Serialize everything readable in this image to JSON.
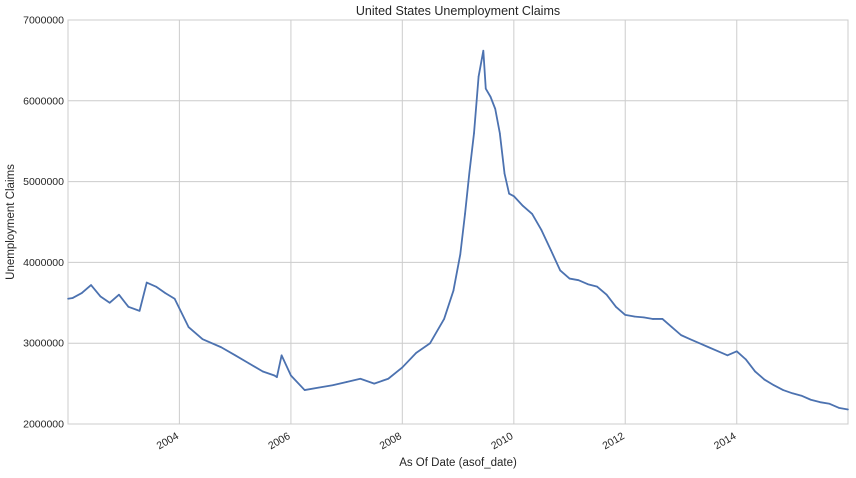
{
  "chart_data": {
    "type": "line",
    "title": "United States Unemployment Claims",
    "xlabel": "As Of Date (asof_date)",
    "ylabel": "Unemployment Claims",
    "xlim": [
      "2002-01-01",
      "2015-12-31"
    ],
    "ylim": [
      2000000,
      7000000
    ],
    "grid": true,
    "legend": "none",
    "line_color": "#4c72b0",
    "grid_color": "#cccccc",
    "x_ticks": [
      {
        "value": "2004-01-01",
        "label": "2004"
      },
      {
        "value": "2006-01-01",
        "label": "2006"
      },
      {
        "value": "2008-01-01",
        "label": "2008"
      },
      {
        "value": "2010-01-01",
        "label": "2010"
      },
      {
        "value": "2012-01-01",
        "label": "2012"
      },
      {
        "value": "2014-01-01",
        "label": "2014"
      }
    ],
    "y_ticks": [
      {
        "value": 2000000,
        "label": "2000000"
      },
      {
        "value": 3000000,
        "label": "3000000"
      },
      {
        "value": 4000000,
        "label": "4000000"
      },
      {
        "value": 5000000,
        "label": "5000000"
      },
      {
        "value": 6000000,
        "label": "6000000"
      },
      {
        "value": 7000000,
        "label": "7000000"
      }
    ],
    "series": [
      {
        "x": [
          "2002-01-01",
          "2002-02-01",
          "2002-04-01",
          "2002-06-01",
          "2002-08-01",
          "2002-10-01",
          "2002-12-01",
          "2003-02-01",
          "2003-04-15",
          "2003-06-01",
          "2003-08-01",
          "2003-10-01",
          "2003-12-01",
          "2004-03-01",
          "2004-06-01",
          "2004-10-01",
          "2005-01-01",
          "2005-04-01",
          "2005-07-01",
          "2005-09-15",
          "2005-10-01",
          "2005-11-01",
          "2006-01-01",
          "2006-04-01",
          "2006-07-01",
          "2006-10-01",
          "2007-01-01",
          "2007-04-01",
          "2007-07-01",
          "2007-10-01",
          "2008-01-01",
          "2008-04-01",
          "2008-07-01",
          "2008-10-01",
          "2008-12-01",
          "2009-01-15",
          "2009-02-15",
          "2009-03-15",
          "2009-04-15",
          "2009-05-15",
          "2009-06-15",
          "2009-07-01",
          "2009-08-01",
          "2009-09-01",
          "2009-10-01",
          "2009-11-01",
          "2009-12-01",
          "2010-01-01",
          "2010-03-01",
          "2010-05-01",
          "2010-07-01",
          "2010-09-01",
          "2010-11-01",
          "2011-01-01",
          "2011-03-01",
          "2011-05-01",
          "2011-07-01",
          "2011-09-01",
          "2011-11-01",
          "2012-01-01",
          "2012-03-01",
          "2012-05-01",
          "2012-07-01",
          "2012-09-01",
          "2012-11-01",
          "2013-01-01",
          "2013-03-01",
          "2013-05-01",
          "2013-07-01",
          "2013-09-01",
          "2013-11-01",
          "2014-01-01",
          "2014-03-01",
          "2014-05-01",
          "2014-07-01",
          "2014-09-01",
          "2014-11-01",
          "2015-01-01",
          "2015-03-01",
          "2015-05-01",
          "2015-07-01",
          "2015-09-01",
          "2015-11-01",
          "2015-12-31"
        ],
        "values": [
          3550000,
          3560000,
          3620000,
          3720000,
          3580000,
          3500000,
          3600000,
          3450000,
          3400000,
          3750000,
          3700000,
          3620000,
          3550000,
          3200000,
          3050000,
          2950000,
          2850000,
          2750000,
          2650000,
          2600000,
          2580000,
          2850000,
          2600000,
          2420000,
          2450000,
          2480000,
          2520000,
          2560000,
          2500000,
          2560000,
          2700000,
          2880000,
          3000000,
          3300000,
          3650000,
          4100000,
          4600000,
          5100000,
          5600000,
          6300000,
          6620000,
          6150000,
          6050000,
          5900000,
          5600000,
          5100000,
          4850000,
          4820000,
          4700000,
          4600000,
          4400000,
          4150000,
          3900000,
          3800000,
          3780000,
          3730000,
          3700000,
          3600000,
          3450000,
          3350000,
          3330000,
          3320000,
          3300000,
          3300000,
          3200000,
          3100000,
          3050000,
          3000000,
          2950000,
          2900000,
          2850000,
          2900000,
          2800000,
          2650000,
          2550000,
          2480000,
          2420000,
          2380000,
          2350000,
          2300000,
          2270000,
          2250000,
          2200000,
          2180000
        ]
      }
    ]
  }
}
